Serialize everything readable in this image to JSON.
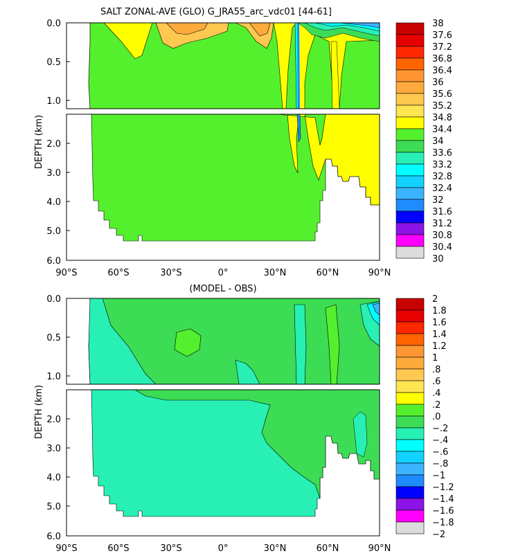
{
  "chart_data": [
    {
      "type": "heatmap",
      "title": "SALT ZONAL-AVE (GLO) G_JRA55_arc_vdc01 [44-61]",
      "xlabel": "",
      "ylabel": "DEPTH (km)",
      "x_ticks": [
        "90°S",
        "60°S",
        "30°S",
        "0°",
        "30°N",
        "60°N",
        "90°N"
      ],
      "y_ticks_upper": [
        "0.0",
        "0.5",
        "1.0"
      ],
      "y_ticks_lower": [
        "2.0",
        "3.0",
        "4.0",
        "5.0",
        "6.0"
      ],
      "xlim": [
        -90,
        90
      ],
      "ylim_km": [
        0,
        6
      ],
      "upper_panel_depth_km": [
        0,
        1.1
      ],
      "lower_panel_depth_km": [
        1.1,
        6
      ],
      "colorbar_labels": [
        "38",
        "37.6",
        "37.2",
        "36.8",
        "36.4",
        "36",
        "35.6",
        "35.2",
        "34.8",
        "34.4",
        "34",
        "33.6",
        "33.2",
        "32.8",
        "32.4",
        "32",
        "31.6",
        "31.2",
        "30.8",
        "30.4",
        "30"
      ],
      "colorbar_colors": [
        "#c80000",
        "#e60000",
        "#ff2800",
        "#ff6400",
        "#ff9632",
        "#ffaa3c",
        "#ffc850",
        "#ffe650",
        "#ffff00",
        "#55f02d",
        "#3cdc55",
        "#28f0b4",
        "#00ffff",
        "#14d2ff",
        "#3cb4ff",
        "#1e8cff",
        "#0000ff",
        "#8c14e6",
        "#ff00ff",
        "#dcdcdc",
        "#828282"
      ],
      "dominant_value": "34.4-34.8"
    },
    {
      "type": "heatmap",
      "title": "(MODEL - OBS)",
      "xlabel": "",
      "ylabel": "DEPTH (km)",
      "x_ticks": [
        "90°S",
        "60°S",
        "30°S",
        "0°",
        "30°N",
        "60°N",
        "90°N"
      ],
      "y_ticks_upper": [
        "0.0",
        "0.5",
        "1.0"
      ],
      "y_ticks_lower": [
        "2.0",
        "3.0",
        "4.0",
        "5.0",
        "6.0"
      ],
      "xlim": [
        -90,
        90
      ],
      "ylim_km": [
        0,
        6
      ],
      "colorbar_labels": [
        "2",
        "1.8",
        "1.6",
        "1.4",
        "1.2",
        "1",
        ".8",
        ".6",
        ".4",
        ".2",
        ".0",
        "−.2",
        "−.4",
        "−.6",
        "−.8",
        "−1",
        "−1.2",
        "−1.4",
        "−1.6",
        "−1.8",
        "−2"
      ],
      "colorbar_colors": [
        "#c80000",
        "#e60000",
        "#ff2800",
        "#ff6400",
        "#ff9632",
        "#ffaa3c",
        "#ffc850",
        "#ffe650",
        "#ffff00",
        "#55f02d",
        "#3cdc55",
        "#28f0b4",
        "#00ffff",
        "#14d2ff",
        "#3cb4ff",
        "#1e8cff",
        "#0000ff",
        "#8c14e6",
        "#ff00ff",
        "#dcdcdc",
        "#828282"
      ],
      "dominant_value": "-0.2-0.0 (south, deep) and 0.0-0.2 (north, upper)"
    }
  ]
}
